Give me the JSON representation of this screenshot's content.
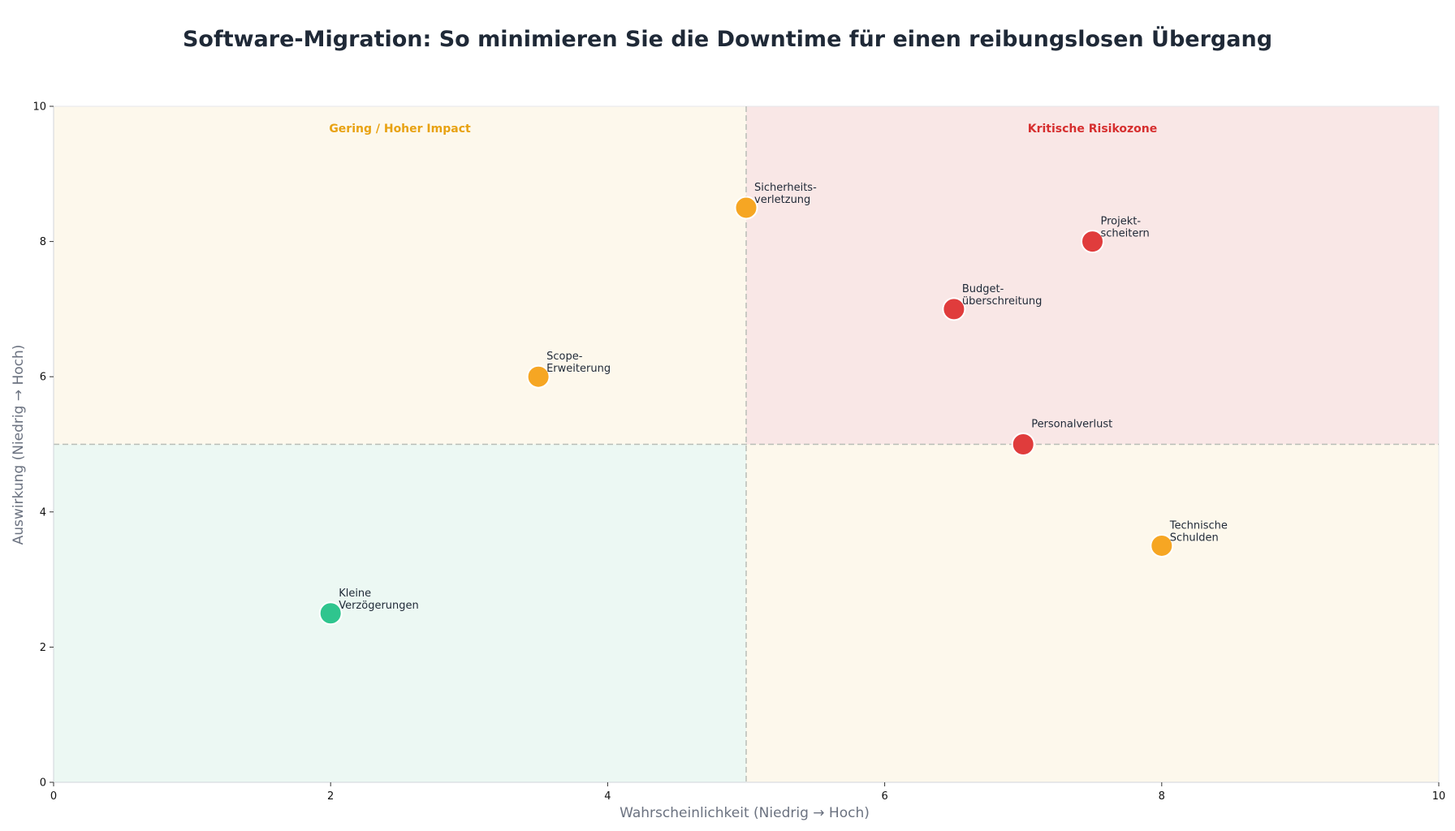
{
  "colors": {
    "high": "#e03c3c",
    "medium": "#f6a623",
    "low": "#2fc58e",
    "quad_high_high": "#f9e7e6",
    "quad_mixed": "#fdf8ec",
    "quad_low_low": "#ecf8f3",
    "label_mixed": "#e8a212",
    "label_critical": "#d62f2f"
  },
  "chart_data": {
    "type": "scatter",
    "title": "Software-Migration: So minimieren Sie die Downtime für einen reibungslosen Übergang",
    "xlabel": "Wahrscheinlichkeit (Niedrig → Hoch)",
    "ylabel": "Auswirkung (Niedrig → Hoch)",
    "xlim": [
      0,
      10
    ],
    "ylim": [
      0,
      10
    ],
    "xticks": [
      0,
      2,
      4,
      6,
      8,
      10
    ],
    "yticks": [
      0,
      2,
      4,
      6,
      8,
      10
    ],
    "thresholds": {
      "x": 5,
      "y": 5
    },
    "grid": false,
    "quadrant_labels": [
      {
        "text": "Gering / Hoher Impact",
        "quadrant": "top-left"
      },
      {
        "text": "Kritische Risikozone",
        "quadrant": "top-right"
      }
    ],
    "points": [
      {
        "label": [
          "Sicherheits-",
          "verletzung"
        ],
        "x": 5.0,
        "y": 8.5,
        "level": "medium"
      },
      {
        "label": [
          "Projekt-",
          "scheitern"
        ],
        "x": 7.5,
        "y": 8.0,
        "level": "high"
      },
      {
        "label": [
          "Budget-",
          "überschreitung"
        ],
        "x": 6.5,
        "y": 7.0,
        "level": "high"
      },
      {
        "label": [
          "Scope-",
          "Erweiterung"
        ],
        "x": 3.5,
        "y": 6.0,
        "level": "medium"
      },
      {
        "label": [
          "Personalverlust"
        ],
        "x": 7.0,
        "y": 5.0,
        "level": "high"
      },
      {
        "label": [
          "Technische",
          "Schulden"
        ],
        "x": 8.0,
        "y": 3.5,
        "level": "medium"
      },
      {
        "label": [
          "Kleine",
          "Verzögerungen"
        ],
        "x": 2.0,
        "y": 2.5,
        "level": "low"
      }
    ]
  }
}
